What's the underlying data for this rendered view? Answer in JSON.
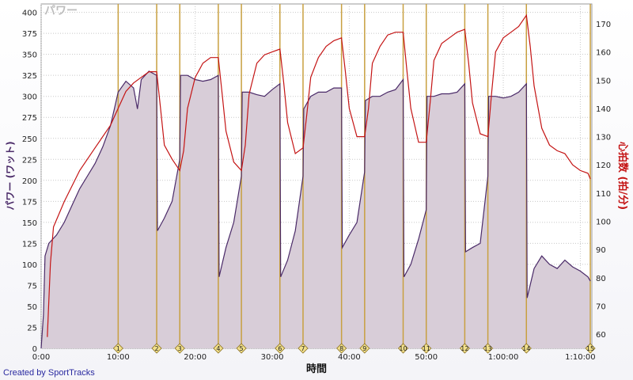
{
  "credit": "Created by SportTracks",
  "chart_data": {
    "type": "area",
    "title": "パワー",
    "xlabel": "時間",
    "ylabel_left": "パワー (ワット)",
    "ylabel_right": "心拍数 (拍/分)",
    "x_unit": "minutes",
    "xlim": [
      0,
      71.5
    ],
    "ylim_left": [
      0,
      410
    ],
    "ylim_right": [
      55,
      177
    ],
    "x_ticks": [
      {
        "value": 0,
        "label": "0:00"
      },
      {
        "value": 10,
        "label": "10:00"
      },
      {
        "value": 20,
        "label": "20:00"
      },
      {
        "value": 30,
        "label": "30:00"
      },
      {
        "value": 40,
        "label": "40:00"
      },
      {
        "value": 50,
        "label": "50:00"
      },
      {
        "value": 60,
        "label": "1:00:00"
      },
      {
        "value": 70,
        "label": "1:10:00"
      }
    ],
    "y_ticks_left": [
      0,
      25,
      50,
      75,
      100,
      125,
      150,
      175,
      200,
      225,
      250,
      275,
      300,
      325,
      350,
      375,
      400
    ],
    "y_ticks_right": [
      60,
      70,
      80,
      90,
      100,
      110,
      120,
      130,
      140,
      150,
      160,
      170
    ],
    "grid": true,
    "colors": {
      "power_fill": "#d8cdd8",
      "power_line": "#4a2a68",
      "heart_rate": "#c41414",
      "lap_line": "#c8a040",
      "lap_marker": "#f2e08a"
    },
    "laps": [
      {
        "label": "1",
        "x": 10.0
      },
      {
        "label": "2",
        "x": 15.0
      },
      {
        "label": "3",
        "x": 18.0
      },
      {
        "label": "4",
        "x": 23.0
      },
      {
        "label": "5",
        "x": 26.0
      },
      {
        "label": "6",
        "x": 31.0
      },
      {
        "label": "7",
        "x": 34.0
      },
      {
        "label": "8",
        "x": 39.0
      },
      {
        "label": "9",
        "x": 42.0
      },
      {
        "label": "10",
        "x": 47.0
      },
      {
        "label": "11",
        "x": 50.0
      },
      {
        "label": "12",
        "x": 55.0
      },
      {
        "label": "13",
        "x": 58.0
      },
      {
        "label": "14",
        "x": 63.0
      },
      {
        "label": "15",
        "x": 71.3
      }
    ],
    "series": [
      {
        "name": "パワー",
        "axis": "left",
        "points": [
          [
            0.0,
            0
          ],
          [
            0.3,
            40
          ],
          [
            0.5,
            110
          ],
          [
            1,
            125
          ],
          [
            2,
            135
          ],
          [
            3,
            150
          ],
          [
            4,
            170
          ],
          [
            5,
            190
          ],
          [
            6,
            205
          ],
          [
            7,
            220
          ],
          [
            8,
            240
          ],
          [
            9,
            265
          ],
          [
            9.5,
            285
          ],
          [
            10,
            305
          ],
          [
            11,
            318
          ],
          [
            12,
            310
          ],
          [
            12.5,
            285
          ],
          [
            13,
            320
          ],
          [
            14,
            330
          ],
          [
            15,
            325
          ],
          [
            15.1,
            140
          ],
          [
            16,
            155
          ],
          [
            17,
            175
          ],
          [
            18,
            225
          ],
          [
            18.1,
            325
          ],
          [
            19,
            325
          ],
          [
            20,
            320
          ],
          [
            21,
            318
          ],
          [
            22,
            320
          ],
          [
            23,
            325
          ],
          [
            23.1,
            85
          ],
          [
            24,
            120
          ],
          [
            25,
            150
          ],
          [
            26,
            205
          ],
          [
            26.1,
            305
          ],
          [
            27,
            305
          ],
          [
            28,
            302
          ],
          [
            29,
            300
          ],
          [
            30,
            308
          ],
          [
            31,
            315
          ],
          [
            31.1,
            85
          ],
          [
            32,
            105
          ],
          [
            33,
            140
          ],
          [
            34,
            205
          ],
          [
            34.1,
            285
          ],
          [
            35,
            300
          ],
          [
            36,
            305
          ],
          [
            37,
            305
          ],
          [
            38,
            310
          ],
          [
            39,
            310
          ],
          [
            39.1,
            120
          ],
          [
            40,
            135
          ],
          [
            41,
            150
          ],
          [
            42,
            210
          ],
          [
            42.1,
            295
          ],
          [
            43,
            300
          ],
          [
            44,
            300
          ],
          [
            45,
            305
          ],
          [
            46,
            308
          ],
          [
            47,
            320
          ],
          [
            47.1,
            85
          ],
          [
            48,
            100
          ],
          [
            49,
            130
          ],
          [
            50,
            165
          ],
          [
            50.1,
            300
          ],
          [
            51,
            300
          ],
          [
            52,
            303
          ],
          [
            53,
            303
          ],
          [
            54,
            305
          ],
          [
            55,
            315
          ],
          [
            55.1,
            115
          ],
          [
            56,
            120
          ],
          [
            57,
            125
          ],
          [
            58,
            205
          ],
          [
            58.1,
            300
          ],
          [
            59,
            300
          ],
          [
            60,
            298
          ],
          [
            61,
            300
          ],
          [
            62,
            305
          ],
          [
            63,
            315
          ],
          [
            63.1,
            60
          ],
          [
            64,
            95
          ],
          [
            65,
            110
          ],
          [
            66,
            100
          ],
          [
            67,
            95
          ],
          [
            68,
            105
          ],
          [
            69,
            97
          ],
          [
            70,
            92
          ],
          [
            71,
            85
          ],
          [
            71.3,
            80
          ]
        ]
      },
      {
        "name": "心拍数",
        "axis": "right",
        "points": [
          [
            0.8,
            59
          ],
          [
            1.2,
            85
          ],
          [
            1.6,
            98
          ],
          [
            3,
            107
          ],
          [
            5,
            118
          ],
          [
            7,
            126
          ],
          [
            9,
            134
          ],
          [
            10,
            140
          ],
          [
            11,
            146
          ],
          [
            12,
            149
          ],
          [
            13,
            151
          ],
          [
            14,
            153
          ],
          [
            15,
            153
          ],
          [
            15.5,
            140
          ],
          [
            16,
            127
          ],
          [
            17,
            122
          ],
          [
            18,
            118
          ],
          [
            18.5,
            125
          ],
          [
            19,
            140
          ],
          [
            20,
            151
          ],
          [
            21,
            156
          ],
          [
            22,
            158
          ],
          [
            23,
            158
          ],
          [
            23.5,
            145
          ],
          [
            24,
            132
          ],
          [
            25,
            121
          ],
          [
            26,
            118
          ],
          [
            26.5,
            127
          ],
          [
            27,
            145
          ],
          [
            28,
            156
          ],
          [
            29,
            159
          ],
          [
            30,
            160
          ],
          [
            31,
            161
          ],
          [
            31.5,
            149
          ],
          [
            32,
            135
          ],
          [
            33,
            124
          ],
          [
            34,
            126
          ],
          [
            34.5,
            138
          ],
          [
            35,
            151
          ],
          [
            36,
            158
          ],
          [
            37,
            162
          ],
          [
            38,
            164
          ],
          [
            39,
            165
          ],
          [
            39.5,
            153
          ],
          [
            40,
            140
          ],
          [
            41,
            130
          ],
          [
            42,
            130
          ],
          [
            42.5,
            140
          ],
          [
            43,
            156
          ],
          [
            44,
            162
          ],
          [
            45,
            166
          ],
          [
            46,
            167
          ],
          [
            47,
            167
          ],
          [
            47.5,
            153
          ],
          [
            48,
            140
          ],
          [
            49,
            128
          ],
          [
            50,
            128
          ],
          [
            50.5,
            142
          ],
          [
            51,
            157
          ],
          [
            52,
            163
          ],
          [
            53,
            165
          ],
          [
            54,
            167
          ],
          [
            55,
            168
          ],
          [
            55.5,
            156
          ],
          [
            56,
            142
          ],
          [
            57,
            131
          ],
          [
            58,
            130
          ],
          [
            58.5,
            146
          ],
          [
            59,
            160
          ],
          [
            60,
            165
          ],
          [
            61,
            167
          ],
          [
            62,
            169
          ],
          [
            63,
            173
          ],
          [
            63.5,
            162
          ],
          [
            64,
            148
          ],
          [
            65,
            133
          ],
          [
            66,
            127
          ],
          [
            67,
            125
          ],
          [
            68,
            124
          ],
          [
            69,
            120
          ],
          [
            70,
            118
          ],
          [
            71,
            117
          ],
          [
            71.3,
            115
          ]
        ]
      }
    ]
  }
}
